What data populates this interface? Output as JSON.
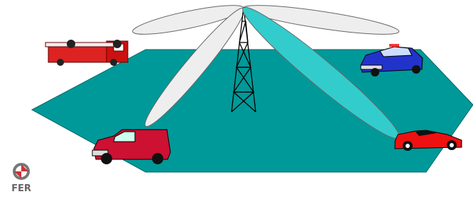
{
  "logo": {
    "text": "FER"
  }
}
